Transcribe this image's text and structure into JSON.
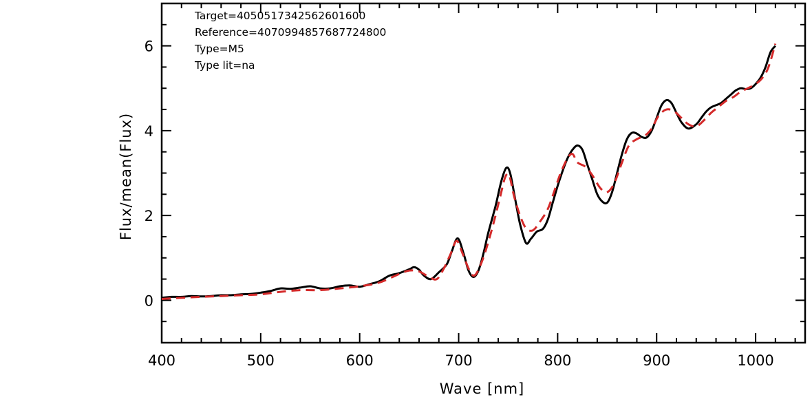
{
  "chart_data": {
    "type": "line",
    "title": "",
    "xlabel": "Wave [nm]",
    "ylabel": "Flux/mean(Flux)",
    "xlim": [
      400,
      1050
    ],
    "ylim": [
      -1,
      7
    ],
    "x_ticks": [
      400,
      500,
      600,
      700,
      800,
      900,
      1000
    ],
    "x_tick_labels": [
      "400",
      "500",
      "600",
      "700",
      "800",
      "900",
      "1000"
    ],
    "y_ticks": [
      0,
      2,
      4,
      6
    ],
    "y_tick_labels": [
      "0",
      "2",
      "4",
      "6"
    ],
    "grid": false,
    "annotations": [
      "Target=4050517342562601600",
      "Reference=4070994857687724800",
      "Type=M5",
      "Type lit=na"
    ],
    "series": [
      {
        "color": "#000000",
        "style": "solid",
        "points": [
          [
            400,
            0.06
          ],
          [
            410,
            0.08
          ],
          [
            420,
            0.08
          ],
          [
            430,
            0.1
          ],
          [
            440,
            0.09
          ],
          [
            450,
            0.1
          ],
          [
            460,
            0.12
          ],
          [
            470,
            0.12
          ],
          [
            480,
            0.14
          ],
          [
            490,
            0.15
          ],
          [
            500,
            0.18
          ],
          [
            510,
            0.22
          ],
          [
            520,
            0.28
          ],
          [
            530,
            0.27
          ],
          [
            540,
            0.3
          ],
          [
            550,
            0.33
          ],
          [
            560,
            0.28
          ],
          [
            570,
            0.28
          ],
          [
            580,
            0.33
          ],
          [
            590,
            0.35
          ],
          [
            600,
            0.32
          ],
          [
            610,
            0.38
          ],
          [
            620,
            0.45
          ],
          [
            630,
            0.58
          ],
          [
            640,
            0.64
          ],
          [
            650,
            0.73
          ],
          [
            655,
            0.78
          ],
          [
            660,
            0.72
          ],
          [
            665,
            0.58
          ],
          [
            672,
            0.5
          ],
          [
            680,
            0.66
          ],
          [
            688,
            0.85
          ],
          [
            693,
            1.15
          ],
          [
            699,
            1.46
          ],
          [
            705,
            1.1
          ],
          [
            710,
            0.7
          ],
          [
            715,
            0.55
          ],
          [
            720,
            0.7
          ],
          [
            725,
            1.1
          ],
          [
            730,
            1.6
          ],
          [
            737,
            2.2
          ],
          [
            743,
            2.8
          ],
          [
            748,
            3.12
          ],
          [
            752,
            3.0
          ],
          [
            757,
            2.4
          ],
          [
            762,
            1.8
          ],
          [
            768,
            1.35
          ],
          [
            773,
            1.45
          ],
          [
            779,
            1.62
          ],
          [
            785,
            1.68
          ],
          [
            790,
            1.9
          ],
          [
            795,
            2.3
          ],
          [
            800,
            2.7
          ],
          [
            805,
            3.05
          ],
          [
            810,
            3.35
          ],
          [
            815,
            3.55
          ],
          [
            820,
            3.65
          ],
          [
            825,
            3.55
          ],
          [
            830,
            3.2
          ],
          [
            835,
            2.85
          ],
          [
            840,
            2.5
          ],
          [
            845,
            2.33
          ],
          [
            850,
            2.3
          ],
          [
            855,
            2.55
          ],
          [
            860,
            3.0
          ],
          [
            865,
            3.45
          ],
          [
            870,
            3.8
          ],
          [
            875,
            3.95
          ],
          [
            880,
            3.93
          ],
          [
            885,
            3.85
          ],
          [
            890,
            3.84
          ],
          [
            895,
            4.0
          ],
          [
            900,
            4.3
          ],
          [
            905,
            4.6
          ],
          [
            910,
            4.72
          ],
          [
            915,
            4.65
          ],
          [
            920,
            4.42
          ],
          [
            925,
            4.2
          ],
          [
            932,
            4.05
          ],
          [
            940,
            4.15
          ],
          [
            945,
            4.3
          ],
          [
            950,
            4.45
          ],
          [
            955,
            4.55
          ],
          [
            960,
            4.6
          ],
          [
            965,
            4.65
          ],
          [
            970,
            4.75
          ],
          [
            975,
            4.85
          ],
          [
            980,
            4.95
          ],
          [
            985,
            5.0
          ],
          [
            990,
            4.98
          ],
          [
            995,
            5.0
          ],
          [
            1000,
            5.1
          ],
          [
            1005,
            5.25
          ],
          [
            1010,
            5.5
          ],
          [
            1015,
            5.85
          ],
          [
            1020,
            6.0
          ]
        ]
      },
      {
        "color": "#d42a2a",
        "style": "dashed",
        "points": [
          [
            400,
            0.03
          ],
          [
            420,
            0.06
          ],
          [
            440,
            0.08
          ],
          [
            460,
            0.1
          ],
          [
            480,
            0.12
          ],
          [
            500,
            0.14
          ],
          [
            520,
            0.2
          ],
          [
            540,
            0.24
          ],
          [
            560,
            0.24
          ],
          [
            580,
            0.28
          ],
          [
            600,
            0.33
          ],
          [
            620,
            0.42
          ],
          [
            640,
            0.62
          ],
          [
            650,
            0.7
          ],
          [
            660,
            0.68
          ],
          [
            670,
            0.55
          ],
          [
            678,
            0.5
          ],
          [
            685,
            0.75
          ],
          [
            692,
            1.1
          ],
          [
            698,
            1.4
          ],
          [
            704,
            1.1
          ],
          [
            710,
            0.75
          ],
          [
            715,
            0.58
          ],
          [
            720,
            0.72
          ],
          [
            727,
            1.15
          ],
          [
            735,
            1.8
          ],
          [
            742,
            2.45
          ],
          [
            747,
            2.9
          ],
          [
            751,
            2.95
          ],
          [
            756,
            2.45
          ],
          [
            762,
            2.0
          ],
          [
            768,
            1.7
          ],
          [
            775,
            1.65
          ],
          [
            782,
            1.85
          ],
          [
            790,
            2.15
          ],
          [
            797,
            2.6
          ],
          [
            803,
            3.0
          ],
          [
            810,
            3.35
          ],
          [
            815,
            3.45
          ],
          [
            820,
            3.25
          ],
          [
            828,
            3.15
          ],
          [
            835,
            2.95
          ],
          [
            843,
            2.65
          ],
          [
            850,
            2.55
          ],
          [
            857,
            2.75
          ],
          [
            865,
            3.25
          ],
          [
            872,
            3.65
          ],
          [
            880,
            3.8
          ],
          [
            888,
            3.88
          ],
          [
            895,
            4.05
          ],
          [
            902,
            4.35
          ],
          [
            910,
            4.5
          ],
          [
            918,
            4.45
          ],
          [
            925,
            4.3
          ],
          [
            932,
            4.15
          ],
          [
            940,
            4.1
          ],
          [
            948,
            4.25
          ],
          [
            955,
            4.42
          ],
          [
            962,
            4.55
          ],
          [
            970,
            4.7
          ],
          [
            978,
            4.8
          ],
          [
            985,
            4.92
          ],
          [
            992,
            5.0
          ],
          [
            1000,
            5.1
          ],
          [
            1007,
            5.25
          ],
          [
            1013,
            5.5
          ],
          [
            1020,
            6.05
          ]
        ]
      }
    ]
  }
}
